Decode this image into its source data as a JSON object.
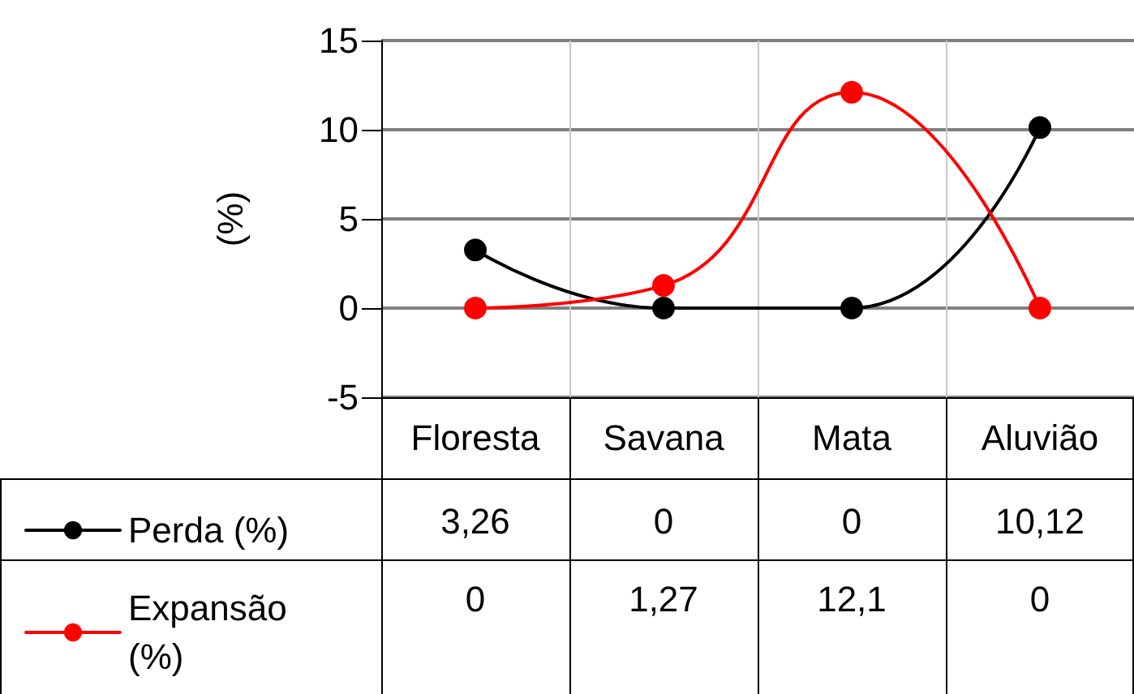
{
  "chart_data": {
    "type": "line",
    "ylabel": "(%)",
    "categories": [
      "Floresta",
      "Savana",
      "Mata",
      "Aluvião"
    ],
    "series": [
      {
        "name": "Perda (%)",
        "color": "#000000",
        "values": [
          3.26,
          0,
          0,
          10.12
        ],
        "value_labels": [
          "3,26",
          "0",
          "0",
          "10,12"
        ]
      },
      {
        "name": "Expansão (%)",
        "color": "#ff0000",
        "values": [
          0,
          1.27,
          12.1,
          0
        ],
        "value_labels": [
          "0",
          "1,27",
          "12,1",
          "0"
        ]
      }
    ],
    "ylim": [
      -5,
      15
    ],
    "yticks": [
      -5,
      0,
      5,
      10,
      15
    ],
    "grid": true,
    "legend": "bottom left",
    "marker": "circle",
    "line_style": "solid"
  }
}
